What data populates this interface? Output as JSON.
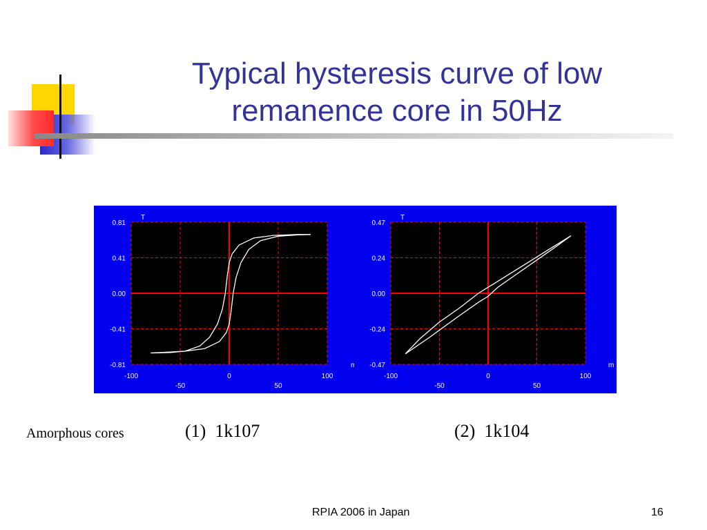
{
  "slide": {
    "title_lines": [
      "Typical hysteresis curve of low",
      "remanence core in 50Hz"
    ],
    "caption_label": "Amorphous cores",
    "caption_1": "(1)  1k107",
    "caption_2": "(2)  1k104",
    "footer_text": "RPIA 2006 in Japan",
    "page_number": "16"
  },
  "colors": {
    "title": "#333399",
    "plot_bg": "#0000ee",
    "plot_area": "#000000",
    "grid_axis": "#ff0000",
    "curve": "#ffffff",
    "label": "#ffffff"
  },
  "chart_data": [
    {
      "type": "line",
      "y_unit": "T",
      "x_unit": "m",
      "xlim": [
        -100,
        100
      ],
      "ylim": [
        -0.81,
        0.81
      ],
      "xticks_top": [
        "-100",
        "0",
        "100"
      ],
      "xticks_bottom": [
        "-50",
        "50"
      ],
      "yticks": [
        "0.81",
        "0.41",
        "0.00",
        "-0.41",
        "-0.81"
      ],
      "caption": "(1)  1k107",
      "series": [
        {
          "points": [
            [
              -80,
              -0.68
            ],
            [
              -60,
              -0.675
            ],
            [
              -45,
              -0.66
            ],
            [
              -30,
              -0.6
            ],
            [
              -20,
              -0.5
            ],
            [
              -12,
              -0.35
            ],
            [
              -7,
              -0.18
            ],
            [
              -4,
              0.0
            ],
            [
              -2,
              0.2
            ],
            [
              0,
              0.35
            ],
            [
              3,
              0.45
            ],
            [
              10,
              0.55
            ],
            [
              25,
              0.63
            ],
            [
              45,
              0.66
            ],
            [
              70,
              0.67
            ],
            [
              83,
              0.67
            ]
          ]
        },
        {
          "points": [
            [
              83,
              0.67
            ],
            [
              70,
              0.665
            ],
            [
              50,
              0.65
            ],
            [
              32,
              0.6
            ],
            [
              20,
              0.5
            ],
            [
              12,
              0.35
            ],
            [
              7,
              0.18
            ],
            [
              4,
              0.0
            ],
            [
              2,
              -0.2
            ],
            [
              0,
              -0.35
            ],
            [
              -3,
              -0.45
            ],
            [
              -10,
              -0.55
            ],
            [
              -25,
              -0.63
            ],
            [
              -45,
              -0.66
            ],
            [
              -70,
              -0.675
            ],
            [
              -80,
              -0.68
            ]
          ]
        }
      ]
    },
    {
      "type": "line",
      "y_unit": "T",
      "x_unit": "m",
      "xlim": [
        -100,
        100
      ],
      "ylim": [
        -0.47,
        0.47
      ],
      "xticks_top": [
        "-100",
        "0",
        "100"
      ],
      "xticks_bottom": [
        "-50",
        "50"
      ],
      "yticks": [
        "0.47",
        "0.24",
        "0.00",
        "-0.24",
        "-0.47"
      ],
      "caption": "(2)  1k104",
      "series": [
        {
          "points": [
            [
              -85,
              -0.4
            ],
            [
              -60,
              -0.29
            ],
            [
              -30,
              -0.15
            ],
            [
              -10,
              -0.06
            ],
            [
              0,
              -0.02
            ],
            [
              10,
              0.04
            ],
            [
              30,
              0.13
            ],
            [
              50,
              0.22
            ],
            [
              70,
              0.31
            ],
            [
              85,
              0.38
            ]
          ]
        },
        {
          "points": [
            [
              85,
              0.38
            ],
            [
              60,
              0.28
            ],
            [
              40,
              0.2
            ],
            [
              20,
              0.12
            ],
            [
              5,
              0.06
            ],
            [
              0,
              0.04
            ],
            [
              -10,
              0.0
            ],
            [
              -30,
              -0.1
            ],
            [
              -50,
              -0.19
            ],
            [
              -70,
              -0.3
            ],
            [
              -85,
              -0.4
            ]
          ]
        }
      ]
    }
  ]
}
